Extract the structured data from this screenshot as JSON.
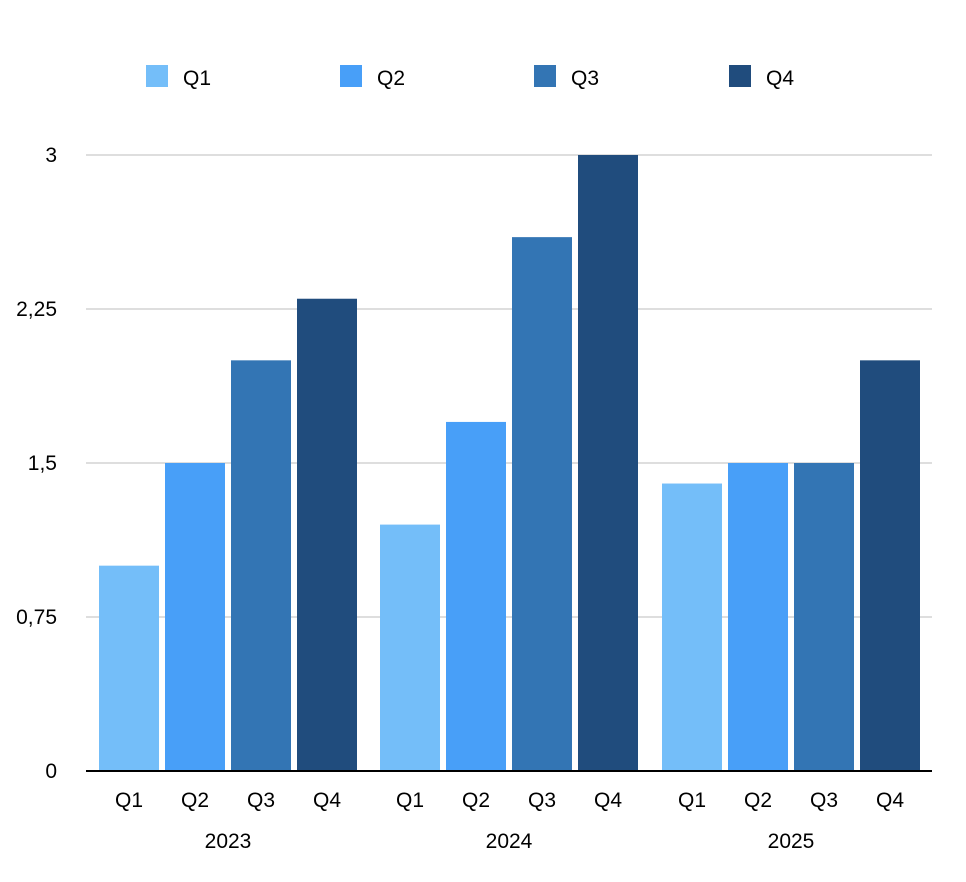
{
  "chart_data": {
    "type": "bar",
    "groups": [
      "2023",
      "2024",
      "2025"
    ],
    "quarters": [
      "Q1",
      "Q2",
      "Q3",
      "Q4"
    ],
    "series": [
      {
        "name": "Q1",
        "color": "#74BEF9",
        "values": [
          1.0,
          1.2,
          1.4
        ]
      },
      {
        "name": "Q2",
        "color": "#489FF8",
        "values": [
          1.5,
          1.7,
          1.5
        ]
      },
      {
        "name": "Q3",
        "color": "#3375B4",
        "values": [
          2.0,
          2.6,
          1.5
        ]
      },
      {
        "name": "Q4",
        "color": "#204C7D",
        "values": [
          2.3,
          3.0,
          2.0
        ]
      }
    ],
    "y_ticks": [
      {
        "value": 0,
        "label": "0"
      },
      {
        "value": 0.75,
        "label": "0,75"
      },
      {
        "value": 1.5,
        "label": "1,5"
      },
      {
        "value": 2.25,
        "label": "2,25"
      },
      {
        "value": 3,
        "label": "3"
      }
    ],
    "ylim": [
      0,
      3
    ],
    "grid": true,
    "legend_position": "top",
    "title": "",
    "xlabel": "",
    "ylabel": ""
  }
}
